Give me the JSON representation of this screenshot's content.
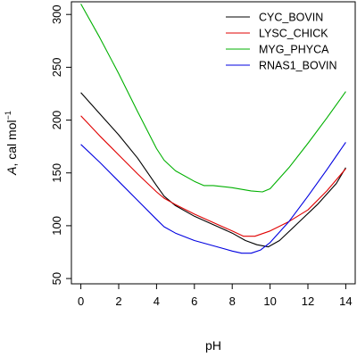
{
  "chart_data": {
    "type": "line",
    "title": "",
    "xlabel": "pH",
    "ylabel_main": "A",
    "ylabel_units": ", cal mol",
    "ylabel_sup": "−1",
    "xlim": [
      -0.5,
      14.5
    ],
    "ylim": [
      45,
      312
    ],
    "x_ticks": [
      0,
      2,
      4,
      6,
      8,
      10,
      12,
      14
    ],
    "y_ticks": [
      50,
      100,
      150,
      200,
      250,
      300
    ],
    "grid": false,
    "legend_position": "top-right",
    "series": [
      {
        "name": "CYC_BOVIN",
        "color": "#000000",
        "x": [
          0,
          1,
          2,
          3,
          4,
          4.4,
          5,
          6,
          7,
          8,
          8.7,
          9.3,
          9.9,
          10.5,
          11.5,
          12.5,
          13.5,
          14
        ],
        "y": [
          226,
          206,
          186,
          164,
          138,
          128,
          119,
          109,
          101,
          93,
          86,
          82,
          80,
          86,
          103,
          120,
          140,
          155
        ]
      },
      {
        "name": "LYSC_CHICK",
        "color": "#e00000",
        "x": [
          0,
          1,
          2,
          3,
          4,
          4.4,
          5,
          6,
          7,
          8,
          8.6,
          9.2,
          10,
          11,
          12,
          13,
          14
        ],
        "y": [
          204,
          185,
          167,
          149,
          132,
          126,
          120,
          111,
          103,
          95,
          90,
          90,
          95,
          104,
          115,
          133,
          154
        ]
      },
      {
        "name": "MYG_PHYCA",
        "color": "#00b000",
        "x": [
          0,
          1,
          2,
          3,
          4,
          4.4,
          5,
          6,
          6.5,
          7,
          8,
          9,
          9.6,
          10,
          11,
          12,
          13,
          14
        ],
        "y": [
          310,
          278,
          244,
          208,
          173,
          162,
          152,
          142,
          138,
          138,
          136,
          133,
          132,
          135,
          155,
          178,
          202,
          227
        ]
      },
      {
        "name": "RNAS1_BOVIN",
        "color": "#0000e0",
        "x": [
          0,
          1,
          2,
          3,
          4,
          4.4,
          5,
          6,
          7,
          8,
          8.5,
          9,
          9.5,
          10,
          11,
          12,
          13,
          14
        ],
        "y": [
          177,
          160,
          142,
          124,
          106,
          99,
          93,
          86,
          81,
          76,
          74,
          74,
          77,
          84,
          104,
          128,
          153,
          179
        ]
      }
    ]
  }
}
